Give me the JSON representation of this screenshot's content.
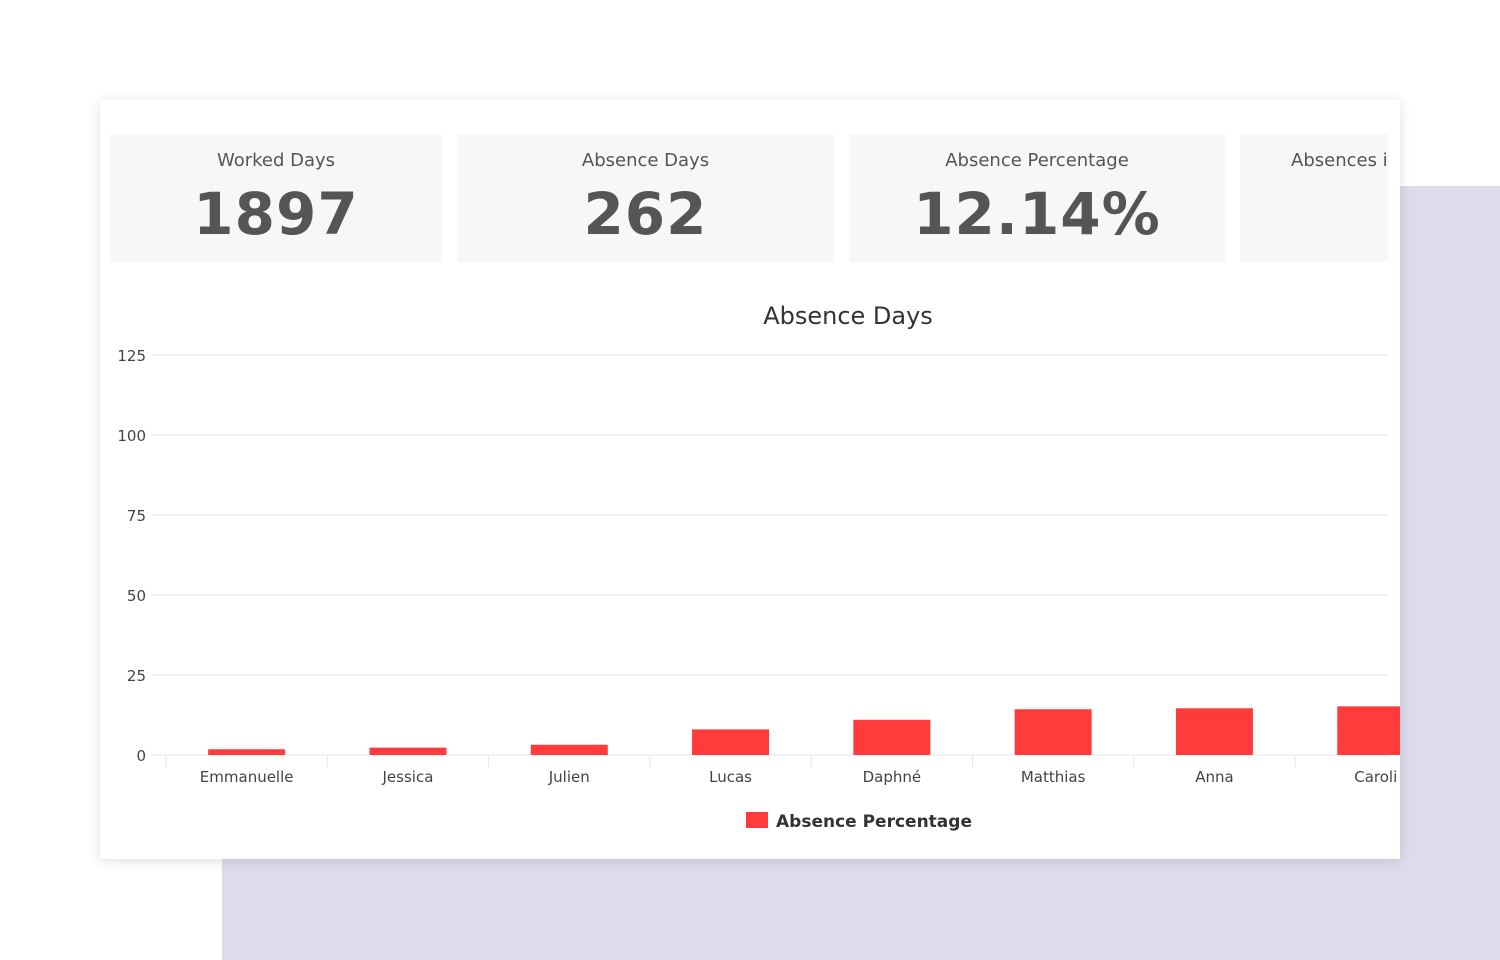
{
  "kpis": [
    {
      "label": "Worked Days",
      "value": "1897"
    },
    {
      "label": "Absence Days",
      "value": "262"
    },
    {
      "label": "Absence Percentage",
      "value": "12.14%"
    },
    {
      "label": "Absences in",
      "value": ""
    }
  ],
  "colors": {
    "bar": "#ff3b3b",
    "grid": "#e6e6e6",
    "kpi_bg": "#f7f7f9",
    "backdrop": "#dcdcec",
    "text": "#555555"
  },
  "chart_data": {
    "type": "bar",
    "title": "Absence Days",
    "xlabel": "",
    "ylabel": "",
    "ylim": [
      0,
      125
    ],
    "yticks": [
      0,
      25,
      50,
      75,
      100,
      125
    ],
    "grid": true,
    "legend_position": "bottom-center",
    "categories": [
      "Emmanuelle",
      "Jessica",
      "Julien",
      "Lucas",
      "Daphné",
      "Matthias",
      "Anna",
      "Caroli"
    ],
    "series": [
      {
        "name": "Absence Percentage",
        "values": [
          1.8,
          2.3,
          3.2,
          8,
          11,
          14.3,
          14.6,
          15.2
        ]
      }
    ]
  }
}
